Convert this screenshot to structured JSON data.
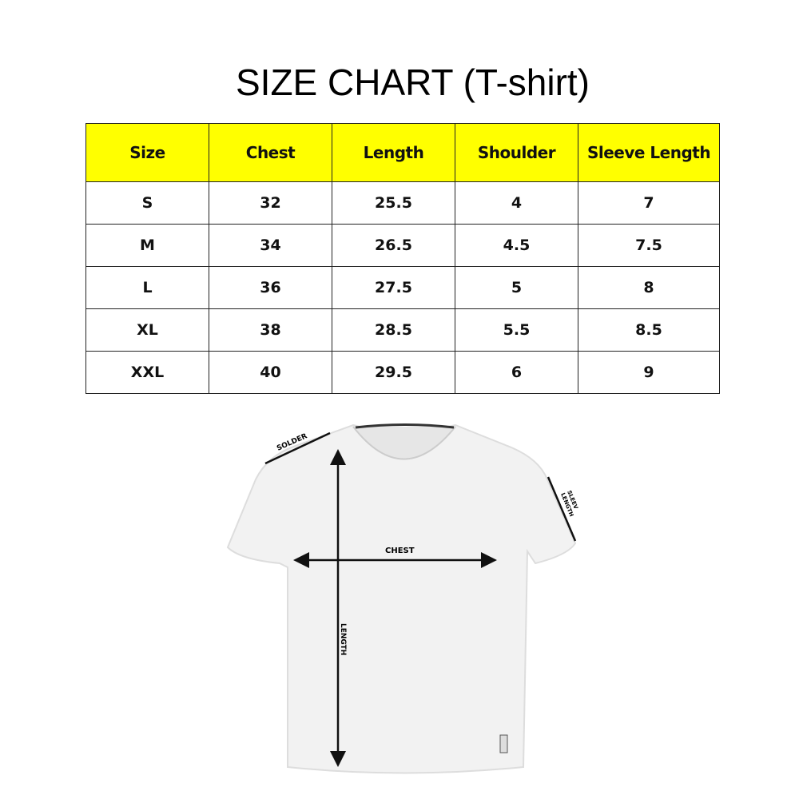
{
  "title": "SIZE CHART (T-shirt)",
  "table": {
    "headers": [
      "Size",
      "Chest",
      "Length",
      "Shoulder",
      "Sleeve Length"
    ],
    "rows": [
      [
        "S",
        "32",
        "25.5",
        "4",
        "7"
      ],
      [
        "M",
        "34",
        "26.5",
        "4.5",
        "7.5"
      ],
      [
        "L",
        "36",
        "27.5",
        "5",
        "8"
      ],
      [
        "XL",
        "38",
        "28.5",
        "5.5",
        "8.5"
      ],
      [
        "XXL",
        "40",
        "29.5",
        "6",
        "9"
      ]
    ],
    "header_color": "#ffff00"
  },
  "diagram": {
    "shoulder": "SOLDER",
    "chest": "CHEST",
    "length": "LENGTH",
    "sleeve_1": "SLEEV",
    "sleeve_2": "LENGTH"
  }
}
